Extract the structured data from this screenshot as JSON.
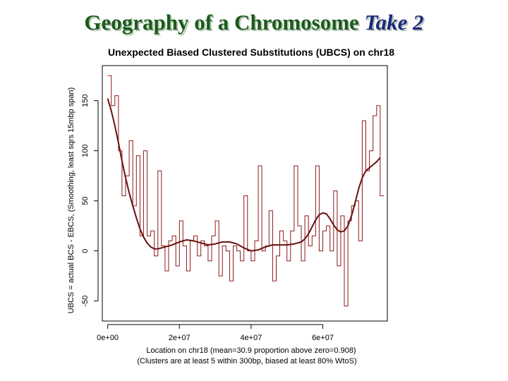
{
  "slide": {
    "title_main": "Geography of a Chromosome",
    "title_accent": "Take 2",
    "accent_color": "#1a2a7a",
    "title_color": "#1a5c1a"
  },
  "chart_data": {
    "type": "line",
    "title": "Unexpected Biased Clustered Substitutions (UBCS) on chr18",
    "xlabel": "Location on chr18 (mean=30.9 proportion above zero=0.908)",
    "xlabel2": "(Clusters are at least 5 within 300bp, biased at least 80% WtoS)",
    "ylabel": "UBCS = actual BCS - EBCS, (Smoothing, least sqrs 15mbp span)",
    "xlim": [
      -1500000,
      78000000
    ],
    "ylim": [
      -70,
      185
    ],
    "x_ticks": [
      0,
      20000000,
      40000000,
      60000000
    ],
    "x_tick_labels": [
      "0e+00",
      "2e+07",
      "4e+07",
      "6e+07"
    ],
    "y_ticks": [
      -50,
      0,
      50,
      100,
      150
    ],
    "y_tick_labels": [
      "-50",
      "0",
      "50",
      "100",
      "150"
    ],
    "grid": false,
    "series": [
      {
        "style": "step",
        "color": "#8b1a1a",
        "x": [
          0,
          1000000,
          2000000,
          3000000,
          4000000,
          5000000,
          6000000,
          7000000,
          8000000,
          9000000,
          10000000,
          11000000,
          12000000,
          13000000,
          14000000,
          15000000,
          16000000,
          17000000,
          18000000,
          19000000,
          20000000,
          21000000,
          22000000,
          23000000,
          24000000,
          25000000,
          26000000,
          27000000,
          28000000,
          29000000,
          30000000,
          31000000,
          32000000,
          33000000,
          34000000,
          35000000,
          36000000,
          37000000,
          38000000,
          39000000,
          40000000,
          41000000,
          42000000,
          43000000,
          44000000,
          45000000,
          46000000,
          47000000,
          48000000,
          49000000,
          50000000,
          51000000,
          52000000,
          53000000,
          54000000,
          55000000,
          56000000,
          57000000,
          58000000,
          59000000,
          60000000,
          61000000,
          62000000,
          63000000,
          64000000,
          65000000,
          66000000,
          67000000,
          68000000,
          69000000,
          70000000,
          71000000,
          72000000,
          73000000,
          74000000,
          75000000,
          76000000
        ],
        "values": [
          175,
          145,
          155,
          100,
          55,
          75,
          110,
          45,
          95,
          15,
          100,
          15,
          20,
          -5,
          80,
          5,
          -20,
          10,
          15,
          -15,
          30,
          5,
          -20,
          10,
          15,
          -5,
          10,
          5,
          -10,
          15,
          30,
          -25,
          5,
          0,
          -30,
          5,
          0,
          -10,
          55,
          0,
          -10,
          10,
          85,
          0,
          5,
          40,
          -30,
          -5,
          20,
          10,
          -10,
          20,
          85,
          25,
          -10,
          35,
          5,
          15,
          85,
          0,
          20,
          25,
          0,
          60,
          -15,
          35,
          -55,
          30,
          45,
          50,
          10,
          130,
          80,
          100,
          135,
          145,
          55
        ]
      },
      {
        "style": "smooth",
        "color": "#6b0f0f",
        "x": [
          0,
          1000000,
          2000000,
          3000000,
          4000000,
          5000000,
          6000000,
          7000000,
          8000000,
          9000000,
          10000000,
          11000000,
          12000000,
          13000000,
          14000000,
          16000000,
          18000000,
          20000000,
          22000000,
          24000000,
          26000000,
          28000000,
          30000000,
          32000000,
          34000000,
          36000000,
          38000000,
          40000000,
          42000000,
          44000000,
          46000000,
          48000000,
          50000000,
          52000000,
          54000000,
          55000000,
          56000000,
          57000000,
          58000000,
          59000000,
          60000000,
          61000000,
          62000000,
          63000000,
          64000000,
          65000000,
          66000000,
          67000000,
          68000000,
          69000000,
          70000000,
          71000000,
          72000000,
          73000000,
          74000000,
          75000000,
          76000000
        ],
        "values": [
          152,
          140,
          125,
          108,
          90,
          73,
          58,
          45,
          33,
          22,
          14,
          8,
          4,
          2,
          2,
          4,
          6,
          9,
          11,
          10,
          8,
          6,
          7,
          9,
          9,
          7,
          3,
          0,
          1,
          4,
          6,
          6,
          6,
          7,
          9,
          12,
          17,
          24,
          31,
          36,
          38,
          37,
          32,
          26,
          21,
          19,
          20,
          25,
          35,
          48,
          62,
          73,
          80,
          83,
          86,
          89,
          93
        ]
      }
    ]
  }
}
